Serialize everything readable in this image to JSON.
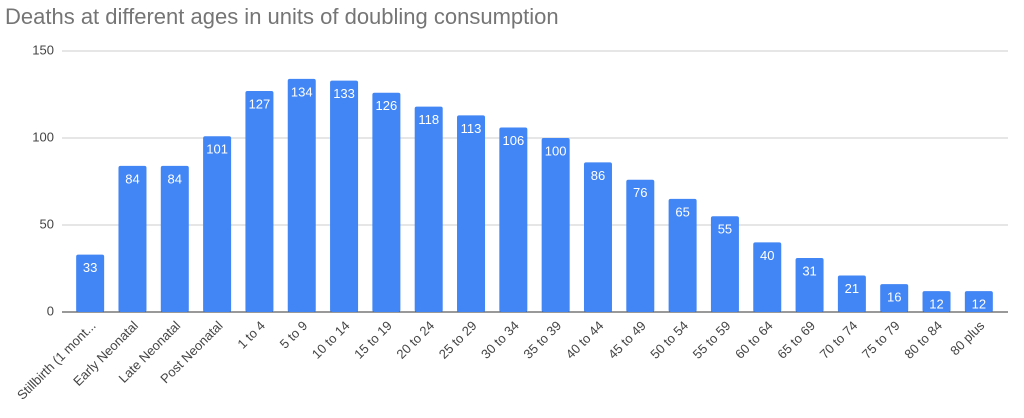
{
  "chart_data": {
    "type": "bar",
    "title": "Deaths at different ages in units of doubling consumption",
    "categories": [
      "Stillbirth (1 mont...",
      "Early Neonatal",
      "Late Neonatal",
      "Post Neonatal",
      "1 to 4",
      "5 to 9",
      "10 to 14",
      "15 to 19",
      "20 to 24",
      "25 to 29",
      "30 to 34",
      "35 to 39",
      "40 to 44",
      "45 to 49",
      "50 to 54",
      "55 to 59",
      "60 to 64",
      "65 to 69",
      "70 to 74",
      "75 to 79",
      "80 to 84",
      "80 plus"
    ],
    "values": [
      33,
      84,
      84,
      101,
      127,
      134,
      133,
      126,
      118,
      113,
      106,
      100,
      86,
      76,
      65,
      55,
      40,
      31,
      21,
      16,
      12,
      12
    ],
    "color": "#4285f4",
    "ylim": [
      0,
      150
    ],
    "yticks": [
      0,
      50,
      100,
      150
    ],
    "grid": true
  }
}
